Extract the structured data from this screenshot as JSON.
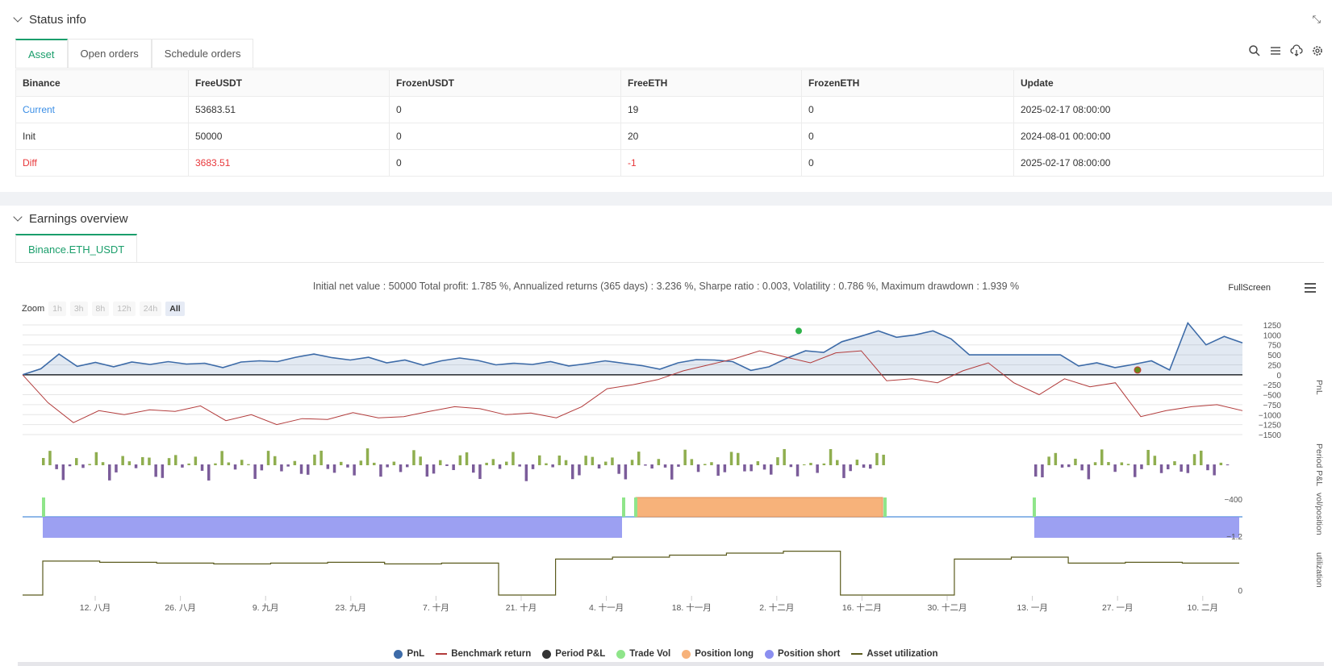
{
  "status": {
    "title": "Status info",
    "tabs": [
      "Asset",
      "Open orders",
      "Schedule orders"
    ],
    "table": {
      "headers": [
        "Binance",
        "FreeUSDT",
        "FrozenUSDT",
        "FreeETH",
        "FrozenETH",
        "Update"
      ],
      "rows": [
        [
          "Current",
          "53683.51",
          "0",
          "19",
          "0",
          "2025-02-17 08:00:00"
        ],
        [
          "Init",
          "50000",
          "0",
          "20",
          "0",
          "2024-08-01 00:00:00"
        ],
        [
          "Diff",
          "3683.51",
          "0",
          "-1",
          "0",
          "2025-02-17 08:00:00"
        ]
      ]
    }
  },
  "earnings": {
    "title": "Earnings overview",
    "tab": "Binance.ETH_USDT",
    "summary": "Initial net value : 50000 Total profit: 1.785 %, Annualized returns (365 days) : 3.236 %, Sharpe ratio : 0.003, Volatility : 0.786 %, Maximum drawdown : 1.939 %",
    "fullscreen": "FullScreen",
    "zoom": {
      "label": "Zoom",
      "buttons": [
        "1h",
        "3h",
        "8h",
        "12h",
        "24h",
        "All"
      ],
      "active": "All"
    }
  },
  "chart_data": {
    "type": "line",
    "x_ticks": [
      "12. 八月",
      "26. 八月",
      "9. 九月",
      "23. 九月",
      "7. 十月",
      "21. 十月",
      "4. 十一月",
      "18. 十一月",
      "2. 十二月",
      "16. 十二月",
      "30. 十二月",
      "13. 一月",
      "27. 一月",
      "10. 二月"
    ],
    "panes": [
      {
        "ylabel": "PnL",
        "yticks": [
          1250,
          1000,
          750,
          500,
          250,
          0,
          -250,
          -500,
          -750,
          -1000,
          -1250,
          -1500
        ],
        "ylim": [
          -1500,
          1250
        ]
      },
      {
        "ylabel": "Period P&L",
        "yticks": [
          -400
        ]
      },
      {
        "ylabel": "vol/position",
        "yticks": [
          -1.2
        ]
      },
      {
        "ylabel": "utilization",
        "yticks": [
          0
        ]
      }
    ],
    "legend": [
      {
        "name": "PnL",
        "color": "#3d6ba8",
        "shape": "dot"
      },
      {
        "name": "Benchmark return",
        "color": "#b23b3b",
        "shape": "line"
      },
      {
        "name": "Period P&L",
        "color": "#333333",
        "shape": "dot"
      },
      {
        "name": "Trade Vol",
        "color": "#8fe58a",
        "shape": "dot"
      },
      {
        "name": "Position long",
        "color": "#f7b27a",
        "shape": "dot"
      },
      {
        "name": "Position short",
        "color": "#8b8ff0",
        "shape": "dot"
      },
      {
        "name": "Asset utilization",
        "color": "#5b5b1e",
        "shape": "line"
      }
    ],
    "series": [
      {
        "name": "PnL",
        "values": [
          0,
          150,
          520,
          210,
          310,
          200,
          320,
          260,
          330,
          270,
          290,
          180,
          320,
          350,
          330,
          440,
          520,
          430,
          370,
          440,
          300,
          370,
          240,
          350,
          420,
          360,
          250,
          290,
          260,
          330,
          220,
          280,
          350,
          290,
          230,
          140,
          300,
          380,
          370,
          330,
          110,
          200,
          420,
          600,
          560,
          830,
          960,
          1100,
          940,
          1000,
          1100,
          900,
          500,
          500,
          500,
          500,
          500,
          500,
          220,
          300,
          180,
          260,
          350,
          120,
          1300,
          750,
          960,
          800
        ]
      },
      {
        "name": "Benchmark return",
        "values": [
          0,
          -700,
          -1200,
          -900,
          -1000,
          -880,
          -920,
          -780,
          -1150,
          -1000,
          -1250,
          -1100,
          -1120,
          -950,
          -1080,
          -1050,
          -920,
          -800,
          -850,
          -1000,
          -960,
          -1080,
          -800,
          -350,
          -250,
          -120,
          100,
          250,
          400,
          600,
          450,
          300,
          550,
          600,
          -150,
          -100,
          -200,
          100,
          300,
          -200,
          -500,
          -100,
          -300,
          -200,
          -1050,
          -900,
          -800,
          -750,
          -900
        ]
      },
      {
        "name": "Asset utilization",
        "values": [
          0.85,
          0.82,
          0.8,
          0.78,
          0.8,
          0.82,
          0.78,
          0.8,
          0.0,
          0.9,
          0.95,
          1.0,
          1.05,
          1.1,
          0.0,
          0.0,
          0.9,
          0.95,
          0.8,
          0.82,
          0.8
        ]
      }
    ]
  }
}
